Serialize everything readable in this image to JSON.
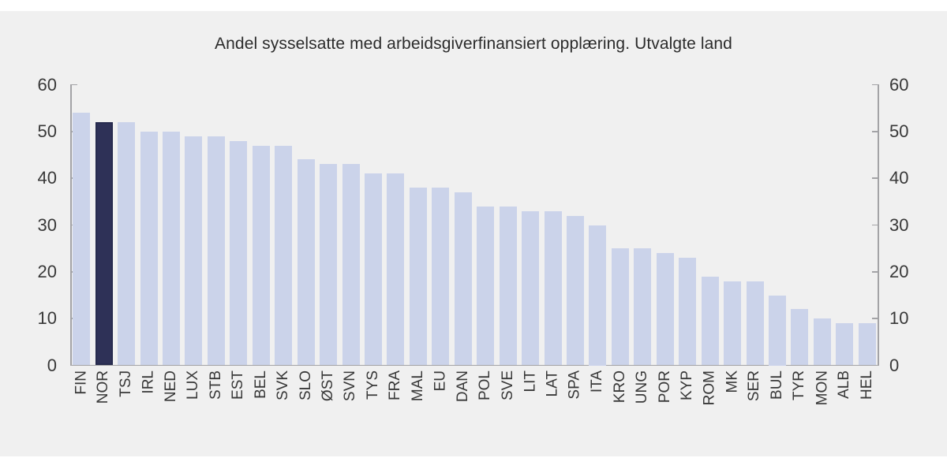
{
  "title": "Andel sysselsatte med arbeidsgiverfinansiert opplæring. Utvalgte land",
  "chart_data": {
    "type": "bar",
    "title": "Andel sysselsatte med arbeidsgiverfinansiert opplæring. Utvalgte land",
    "categories": [
      "FIN",
      "NOR",
      "TSJ",
      "IRL",
      "NED",
      "LUX",
      "STB",
      "EST",
      "BEL",
      "SVK",
      "SLO",
      "ØST",
      "SVN",
      "TYS",
      "FRA",
      "MAL",
      "EU",
      "DAN",
      "POL",
      "SVE",
      "LIT",
      "LAT",
      "SPA",
      "ITA",
      "KRO",
      "UNG",
      "POR",
      "KYP",
      "ROM",
      "MK",
      "SER",
      "BUL",
      "TYR",
      "MON",
      "ALB",
      "HEL"
    ],
    "values": [
      54,
      52,
      52,
      50,
      50,
      49,
      49,
      48,
      47,
      47,
      44,
      43,
      43,
      41,
      41,
      38,
      38,
      37,
      34,
      34,
      33,
      33,
      32,
      30,
      25,
      25,
      24,
      23,
      19,
      18,
      18,
      15,
      12,
      10,
      9,
      9
    ],
    "highlight_category": "NOR",
    "xlabel": "",
    "ylabel": "",
    "ylim": [
      0,
      60
    ],
    "yticks": [
      60,
      50,
      40,
      30,
      20,
      10,
      0
    ],
    "y_axis_sides": "both",
    "grid": false,
    "legend": "none"
  },
  "colors": {
    "panel_background": "#f0f0f0",
    "page_background": "#ffffff",
    "bar": "#cbd3ea",
    "bar_highlight": "#2e3157",
    "axis": "#a3a3a6",
    "text": "#383838"
  }
}
